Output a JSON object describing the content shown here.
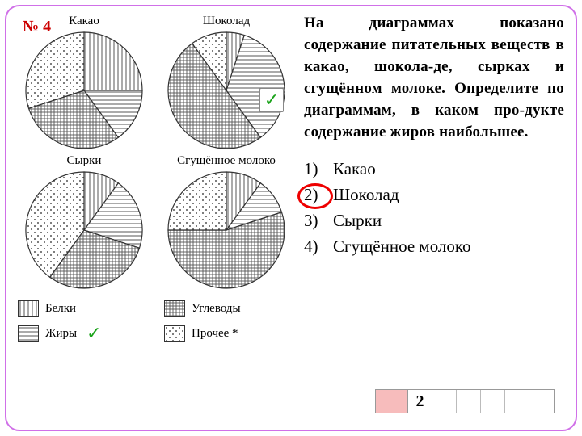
{
  "problem_number": "№ 4",
  "question_text": "На диаграммах показано содержание питательных веществ в какао, шокола-де, сырках и сгущённом молоке. Определите по диаграммам, в каком про-дукте содержание жиров наибольшее.",
  "pies": [
    {
      "title": "Какао",
      "slices": [
        {
          "value": 25,
          "pattern": "vlines"
        },
        {
          "value": 15,
          "pattern": "hlines"
        },
        {
          "value": 30,
          "pattern": "crosshatch"
        },
        {
          "value": 30,
          "pattern": "dots"
        }
      ],
      "checked": false
    },
    {
      "title": "Шоколад",
      "slices": [
        {
          "value": 5,
          "pattern": "vlines"
        },
        {
          "value": 35,
          "pattern": "hlines"
        },
        {
          "value": 50,
          "pattern": "crosshatch"
        },
        {
          "value": 10,
          "pattern": "dots"
        }
      ],
      "checked": true
    },
    {
      "title": "Сырки",
      "slices": [
        {
          "value": 10,
          "pattern": "vlines"
        },
        {
          "value": 20,
          "pattern": "hlines"
        },
        {
          "value": 30,
          "pattern": "crosshatch"
        },
        {
          "value": 40,
          "pattern": "dots"
        }
      ],
      "checked": false
    },
    {
      "title": "Сгущённое молоко",
      "slices": [
        {
          "value": 10,
          "pattern": "vlines"
        },
        {
          "value": 10,
          "pattern": "hlines"
        },
        {
          "value": 55,
          "pattern": "crosshatch"
        },
        {
          "value": 25,
          "pattern": "dots"
        }
      ],
      "checked": false
    }
  ],
  "pie_style": {
    "radius": 72,
    "stroke": "#333",
    "stroke_width": 1.2,
    "start_angle_deg": -90
  },
  "legend": [
    {
      "label": "Белки",
      "pattern": "vlines",
      "checked": false
    },
    {
      "label": "Углеводы",
      "pattern": "crosshatch",
      "checked": false
    },
    {
      "label": "Жиры",
      "pattern": "hlines",
      "checked": true
    },
    {
      "label": "Прочее *",
      "pattern": "dots",
      "checked": false
    }
  ],
  "options": [
    {
      "num": "1)",
      "label": "Какао",
      "circled": false
    },
    {
      "num": "2)",
      "label": "Шоколад",
      "circled": true
    },
    {
      "num": "3)",
      "label": "Сырки",
      "circled": false
    },
    {
      "num": "4)",
      "label": "Сгущённое молоко",
      "circled": false
    }
  ],
  "answer_cells": [
    "2",
    "",
    "",
    "",
    "",
    ""
  ],
  "colors": {
    "frame_border": "#d070e8",
    "problem_no": "#c00",
    "circle_mark": "#e00",
    "checkmark": "#1aa31a",
    "answer_lead_bg": "#f7bcbc",
    "pattern_stroke": "#555"
  }
}
